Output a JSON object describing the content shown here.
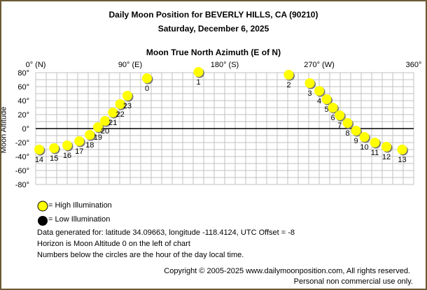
{
  "chart_data": {
    "type": "scatter",
    "title": "Daily Moon Position for BEVERLY HILLS, CA (90210)",
    "subtitle": "Saturday, December 6, 2025",
    "xlabel": "Moon True North Azimuth (E of N)",
    "ylabel": "Moon Altitude",
    "xlim": [
      0,
      360
    ],
    "ylim": [
      -80,
      80
    ],
    "grid": true,
    "x_ticks": [
      {
        "value": 0,
        "label": "0° (N)"
      },
      {
        "value": 90,
        "label": "90° (E)"
      },
      {
        "value": 180,
        "label": "180° (S)"
      },
      {
        "value": 270,
        "label": "270° (W)"
      },
      {
        "value": 360,
        "label": "360°"
      }
    ],
    "y_ticks": [
      80,
      60,
      40,
      20,
      0,
      -20,
      -40,
      -60,
      -80
    ],
    "y_tick_labels": [
      "80°",
      "60°",
      "40°",
      "20°",
      "0°",
      "-20°",
      "-40°",
      "-60°",
      "-80°"
    ],
    "points": [
      {
        "hour": "0",
        "az": 106,
        "alt": 72,
        "illum": "high"
      },
      {
        "hour": "1",
        "az": 155,
        "alt": 81,
        "illum": "high"
      },
      {
        "hour": "2",
        "az": 241,
        "alt": 77,
        "illum": "high"
      },
      {
        "hour": "3",
        "az": 261,
        "alt": 65,
        "illum": "high"
      },
      {
        "hour": "4",
        "az": 270,
        "alt": 54,
        "illum": "high"
      },
      {
        "hour": "5",
        "az": 277,
        "alt": 42,
        "illum": "high"
      },
      {
        "hour": "6",
        "az": 283,
        "alt": 30,
        "illum": "high"
      },
      {
        "hour": "7",
        "az": 289.5,
        "alt": 19,
        "illum": "high"
      },
      {
        "hour": "8",
        "az": 297,
        "alt": 8,
        "illum": "high"
      },
      {
        "hour": "9",
        "az": 305,
        "alt": -3,
        "illum": "high"
      },
      {
        "hour": "10",
        "az": 313,
        "alt": -12,
        "illum": "high"
      },
      {
        "hour": "11",
        "az": 323,
        "alt": -20,
        "illum": "high"
      },
      {
        "hour": "12",
        "az": 334,
        "alt": -26,
        "illum": "high"
      },
      {
        "hour": "13",
        "az": 349,
        "alt": -30,
        "illum": "high"
      },
      {
        "hour": "14",
        "az": 3.3,
        "alt": -30,
        "illum": "high"
      },
      {
        "hour": "15",
        "az": 17.5,
        "alt": -28,
        "illum": "high"
      },
      {
        "hour": "16",
        "az": 30,
        "alt": -24,
        "illum": "high"
      },
      {
        "hour": "17",
        "az": 41.5,
        "alt": -18,
        "illum": "high"
      },
      {
        "hour": "18",
        "az": 51.5,
        "alt": -9,
        "illum": "high"
      },
      {
        "hour": "19",
        "az": 59.3,
        "alt": 2,
        "illum": "high"
      },
      {
        "hour": "20",
        "az": 66,
        "alt": 11,
        "illum": "high"
      },
      {
        "hour": "21",
        "az": 73.5,
        "alt": 23,
        "illum": "high"
      },
      {
        "hour": "22",
        "az": 80.4,
        "alt": 35,
        "illum": "high"
      },
      {
        "hour": "23",
        "az": 87.3,
        "alt": 47,
        "illum": "high"
      }
    ],
    "legend": [
      {
        "label": "= High Illumination",
        "color": "#ffff00"
      },
      {
        "label": "= Low Illumination",
        "color": "#000000"
      }
    ]
  },
  "info": {
    "line1": "Data generated for: latitude 34.09663, longitude -118.4124, UTC Offset = -8",
    "line2": "Horizon is Moon Altitude 0 on the left of chart",
    "line3": "Numbers below the circles are the hour of the day local time."
  },
  "footer": {
    "copyright": "Copyright © 2005-2025 www.dailymoonposition.com, All rights reserved.",
    "notice": "Personal non commercial use only."
  },
  "colors": {
    "high": "#ffff00",
    "low": "#000000",
    "grid": "#c0c0c0",
    "border": "#6b5a35"
  }
}
